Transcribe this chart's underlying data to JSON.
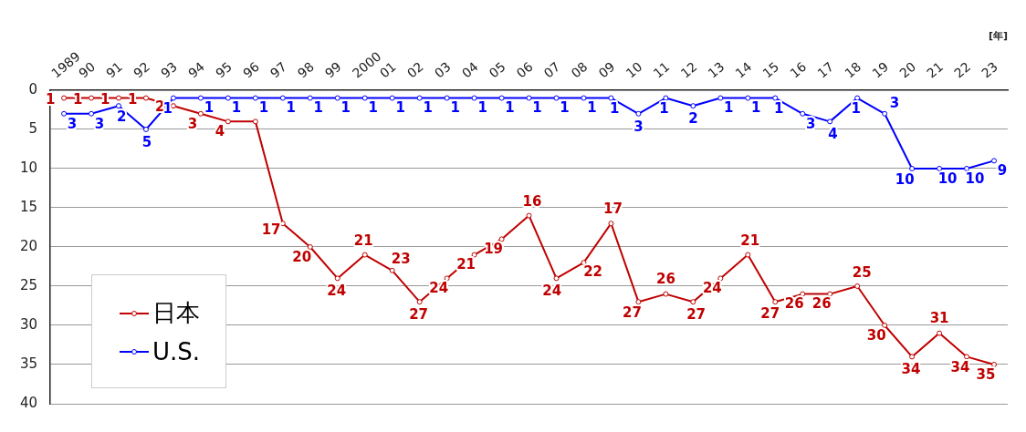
{
  "chart_data": {
    "type": "line",
    "xlabel": "[年]",
    "categories": [
      "1989",
      "90",
      "91",
      "92",
      "93",
      "94",
      "95",
      "96",
      "97",
      "98",
      "99",
      "2000",
      "01",
      "02",
      "03",
      "04",
      "05",
      "06",
      "07",
      "08",
      "09",
      "10",
      "11",
      "12",
      "13",
      "14",
      "15",
      "16",
      "17",
      "18",
      "19",
      "20",
      "21",
      "22",
      "23"
    ],
    "series": [
      {
        "name": "日本",
        "color": "#c00000",
        "values": [
          1,
          1,
          1,
          1,
          2,
          3,
          4,
          4,
          17,
          20,
          24,
          21,
          23,
          27,
          24,
          21,
          19,
          16,
          24,
          22,
          17,
          27,
          26,
          27,
          24,
          21,
          27,
          26,
          26,
          25,
          30,
          34,
          31,
          34,
          35
        ]
      },
      {
        "name": "U.S.",
        "color": "#0000ff",
        "values": [
          3,
          3,
          2,
          5,
          1,
          1,
          1,
          1,
          1,
          1,
          1,
          1,
          1,
          1,
          1,
          1,
          1,
          1,
          1,
          1,
          1,
          3,
          1,
          2,
          1,
          1,
          1,
          3,
          4,
          1,
          3,
          10,
          10,
          10,
          9
        ]
      }
    ],
    "ylim": [
      40,
      0
    ],
    "yticks": [
      0,
      5,
      10,
      15,
      20,
      25,
      30,
      35,
      40
    ],
    "grid": "y",
    "legend": "bottom left",
    "marker": "circle",
    "line_style": "solid",
    "data_labels": true
  }
}
